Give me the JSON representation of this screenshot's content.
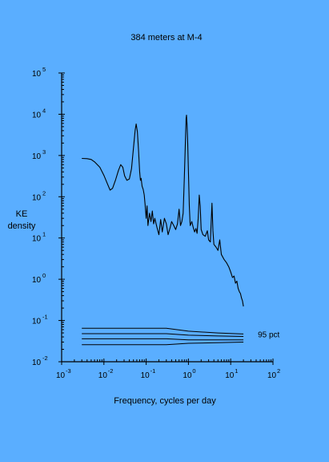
{
  "chart_data": {
    "type": "line",
    "title": "384 meters at M-4",
    "xlabel": "Frequency, cycles per day",
    "ylabel_line1": "KE",
    "ylabel_line2": "density",
    "x_scale": "log",
    "y_scale": "log",
    "xlim": [
      0.001,
      100
    ],
    "ylim": [
      0.01,
      100000
    ],
    "grid": false,
    "x_ticks": [
      {
        "base": "10",
        "exp": "-3",
        "value": 0.001
      },
      {
        "base": "10",
        "exp": "-2",
        "value": 0.01
      },
      {
        "base": "10",
        "exp": "-1",
        "value": 0.1
      },
      {
        "base": "10",
        "exp": "0",
        "value": 1
      },
      {
        "base": "10",
        "exp": "1",
        "value": 10
      },
      {
        "base": "10",
        "exp": "2",
        "value": 100
      }
    ],
    "y_ticks": [
      {
        "base": "10",
        "exp": "-2",
        "value": 0.01
      },
      {
        "base": "10",
        "exp": "-1",
        "value": 0.1
      },
      {
        "base": "10",
        "exp": "0",
        "value": 1
      },
      {
        "base": "10",
        "exp": "1",
        "value": 10
      },
      {
        "base": "10",
        "exp": "2",
        "value": 100
      },
      {
        "base": "10",
        "exp": "3",
        "value": 1000
      },
      {
        "base": "10",
        "exp": "4",
        "value": 10000
      },
      {
        "base": "10",
        "exp": "5",
        "value": 100000
      }
    ],
    "series": [
      {
        "color": "#000000",
        "points": [
          [
            0.003,
            850
          ],
          [
            0.004,
            840
          ],
          [
            0.005,
            800
          ],
          [
            0.006,
            700
          ],
          [
            0.008,
            520
          ],
          [
            0.01,
            330
          ],
          [
            0.012,
            210
          ],
          [
            0.014,
            145
          ],
          [
            0.016,
            160
          ],
          [
            0.019,
            260
          ],
          [
            0.022,
            430
          ],
          [
            0.025,
            600
          ],
          [
            0.028,
            520
          ],
          [
            0.031,
            320
          ],
          [
            0.035,
            250
          ],
          [
            0.04,
            270
          ],
          [
            0.045,
            480
          ],
          [
            0.05,
            1500
          ],
          [
            0.055,
            4200
          ],
          [
            0.058,
            5800
          ],
          [
            0.062,
            3800
          ],
          [
            0.066,
            1300
          ],
          [
            0.07,
            420
          ],
          [
            0.073,
            250
          ],
          [
            0.076,
            280
          ],
          [
            0.08,
            180
          ],
          [
            0.085,
            150
          ],
          [
            0.09,
            110
          ],
          [
            0.095,
            60
          ],
          [
            0.1,
            30
          ],
          [
            0.105,
            60
          ],
          [
            0.11,
            20
          ],
          [
            0.12,
            40
          ],
          [
            0.13,
            25
          ],
          [
            0.14,
            45
          ],
          [
            0.15,
            22
          ],
          [
            0.16,
            30
          ],
          [
            0.18,
            18
          ],
          [
            0.2,
            12
          ],
          [
            0.22,
            28
          ],
          [
            0.24,
            14
          ],
          [
            0.27,
            30
          ],
          [
            0.3,
            22
          ],
          [
            0.33,
            12
          ],
          [
            0.37,
            18
          ],
          [
            0.4,
            25
          ],
          [
            0.45,
            20
          ],
          [
            0.5,
            16
          ],
          [
            0.55,
            22
          ],
          [
            0.6,
            50
          ],
          [
            0.65,
            20
          ],
          [
            0.7,
            25
          ],
          [
            0.75,
            40
          ],
          [
            0.8,
            300
          ],
          [
            0.85,
            2500
          ],
          [
            0.88,
            8000
          ],
          [
            0.9,
            9500
          ],
          [
            0.93,
            5500
          ],
          [
            0.96,
            2000
          ],
          [
            1.0,
            400
          ],
          [
            1.05,
            60
          ],
          [
            1.1,
            20
          ],
          [
            1.2,
            25
          ],
          [
            1.3,
            18
          ],
          [
            1.4,
            14
          ],
          [
            1.5,
            17
          ],
          [
            1.6,
            13
          ],
          [
            1.7,
            30
          ],
          [
            1.8,
            110
          ],
          [
            1.9,
            60
          ],
          [
            2.0,
            16
          ],
          [
            2.2,
            12
          ],
          [
            2.5,
            11
          ],
          [
            2.8,
            15
          ],
          [
            3.0,
            9
          ],
          [
            3.3,
            8
          ],
          [
            3.6,
            70
          ],
          [
            3.8,
            15
          ],
          [
            4.0,
            7
          ],
          [
            4.5,
            6
          ],
          [
            5.0,
            5
          ],
          [
            5.5,
            9
          ],
          [
            6.0,
            4
          ],
          [
            7.0,
            3
          ],
          [
            8.0,
            2.5
          ],
          [
            9.0,
            2
          ],
          [
            10.0,
            1.5
          ],
          [
            11.0,
            1.1
          ],
          [
            12.0,
            1.2
          ],
          [
            13.0,
            0.8
          ],
          [
            14.0,
            0.9
          ],
          [
            15.0,
            0.6
          ],
          [
            16.0,
            0.5
          ],
          [
            17.0,
            0.45
          ],
          [
            18.0,
            0.35
          ],
          [
            19.0,
            0.3
          ],
          [
            20.0,
            0.22
          ]
        ]
      }
    ],
    "confidence": {
      "label": "95 pct",
      "lines": [
        {
          "segments": [
            [
              0.003,
              0.065
            ],
            [
              0.3,
              0.065
            ],
            [
              1.0,
              0.055
            ],
            [
              5.0,
              0.05
            ],
            [
              20.0,
              0.047
            ]
          ]
        },
        {
          "segments": [
            [
              0.003,
              0.048
            ],
            [
              0.3,
              0.048
            ],
            [
              1.0,
              0.044
            ],
            [
              5.0,
              0.042
            ],
            [
              20.0,
              0.041
            ]
          ]
        },
        {
          "segments": [
            [
              0.003,
              0.036
            ],
            [
              0.3,
              0.036
            ],
            [
              1.0,
              0.034
            ],
            [
              5.0,
              0.034
            ],
            [
              20.0,
              0.034
            ]
          ]
        },
        {
          "segments": [
            [
              0.003,
              0.026
            ],
            [
              0.3,
              0.026
            ],
            [
              1.0,
              0.028
            ],
            [
              5.0,
              0.029
            ],
            [
              20.0,
              0.03
            ]
          ]
        }
      ]
    }
  }
}
